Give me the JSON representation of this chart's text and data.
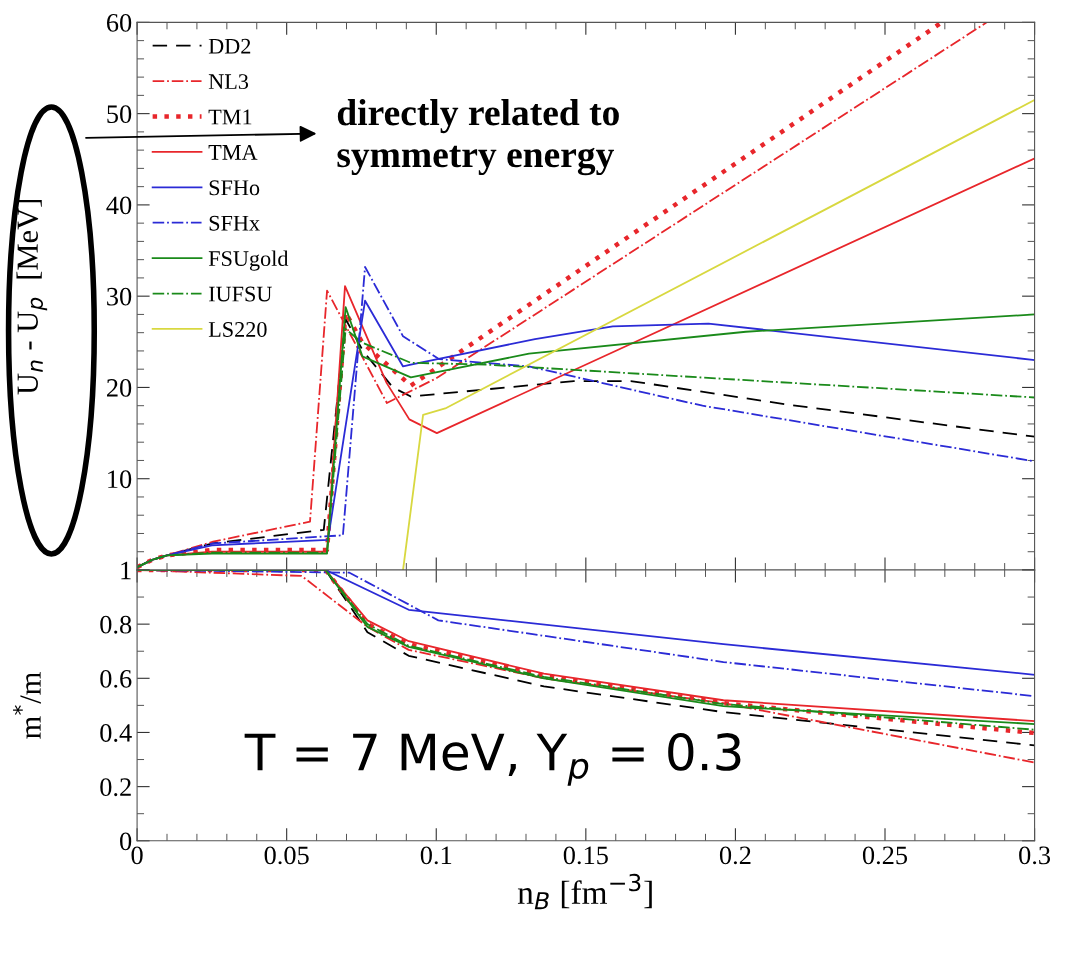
{
  "chart_data": [
    {
      "type": "line",
      "ylabel": "U$_{n}$ - U$_{p}$  [MeV]",
      "annotations": [
        "directly related to\nsymmetry energy"
      ],
      "xlim": [
        0,
        0.3
      ],
      "ylim": [
        0,
        60
      ],
      "xticks": [
        0,
        0.05,
        0.1,
        0.15,
        0.2,
        0.25,
        0.3
      ],
      "yticks": [
        {
          "value": 0,
          "label": null
        },
        10,
        20,
        30,
        40,
        50,
        60
      ],
      "tick_labels": "y",
      "grid": false,
      "legend": "top left",
      "series": [
        {
          "name": "DD2",
          "color": "#000000",
          "line_style": "dashed",
          "x": [
            0,
            0.005,
            0.01,
            0.025,
            0.0624,
            0.0697,
            0.0755,
            0.0855,
            0.0915,
            0.146,
            0.165,
            0.218,
            0.3
          ],
          "values": [
            0.3,
            1.1,
            1.6,
            2.9,
            4.4,
            27.5,
            24.0,
            20.0,
            19.0,
            20.7,
            20.7,
            18.1,
            14.6
          ]
        },
        {
          "name": "NL3",
          "color": "#e8262b",
          "line_style": "dashdot",
          "x": [
            0,
            0.005,
            0.01,
            0.0254,
            0.0578,
            0.0635,
            0.0835,
            0.1,
            0.284
          ],
          "values": [
            0.3,
            1.1,
            1.6,
            3.1,
            5.3,
            30.6,
            18.3,
            21.0,
            60
          ]
        },
        {
          "name": "TM1",
          "color": "#e8262b",
          "line_style": "dotted",
          "x": [
            0,
            0.005,
            0.01,
            0.025,
            0.0635,
            0.0697,
            0.0753,
            0.0915,
            0.269
          ],
          "values": [
            0.3,
            1.1,
            1.6,
            2.2,
            2.2,
            28.2,
            24.9,
            20.2,
            60
          ]
        },
        {
          "name": "TMA",
          "color": "#e8262b",
          "line_style": "solid",
          "x": [
            0,
            0.005,
            0.01,
            0.025,
            0.0635,
            0.0695,
            0.0834,
            0.091,
            0.1002,
            0.3
          ],
          "values": [
            0.3,
            1.1,
            1.6,
            2.0,
            2.0,
            31.1,
            20.5,
            16.5,
            15.0,
            45.1
          ]
        },
        {
          "name": "SFHo",
          "color": "#2b2bd6",
          "line_style": "solid",
          "x": [
            0,
            0.005,
            0.01,
            0.025,
            0.0638,
            0.0762,
            0.0889,
            0.0915,
            0.133,
            0.159,
            0.191,
            0.3
          ],
          "values": [
            0.3,
            1.1,
            1.6,
            2.7,
            3.3,
            29.5,
            22.3,
            22.5,
            25.3,
            26.7,
            27.0,
            23.0
          ]
        },
        {
          "name": "SFHx",
          "color": "#2b2bd6",
          "line_style": "dashdot",
          "x": [
            0,
            0.005,
            0.01,
            0.025,
            0.0688,
            0.0762,
            0.0889,
            0.101,
            0.131,
            0.189,
            0.3
          ],
          "values": [
            0.3,
            1.1,
            1.6,
            2.9,
            3.8,
            33.2,
            25.6,
            23.1,
            22.3,
            18.0,
            11.9
          ]
        },
        {
          "name": "FSUgold",
          "color": "#1a8a1a",
          "line_style": "solid",
          "x": [
            0,
            0.005,
            0.01,
            0.025,
            0.0635,
            0.0697,
            0.0753,
            0.0915,
            0.131,
            0.2035,
            0.3
          ],
          "values": [
            0.3,
            1.1,
            1.6,
            1.8,
            1.8,
            28.8,
            23.4,
            21.1,
            23.7,
            26.1,
            28.0
          ]
        },
        {
          "name": "IUFSU",
          "color": "#1a8a1a",
          "line_style": "dashdot",
          "x": [
            0,
            0.005,
            0.01,
            0.025,
            0.0635,
            0.0697,
            0.0753,
            0.0915,
            0.117,
            0.3
          ],
          "values": [
            0.3,
            1.1,
            1.6,
            1.9,
            1.9,
            26.4,
            24.9,
            22.7,
            22.5,
            18.9
          ]
        },
        {
          "name": "LS220",
          "color": "#d8d840",
          "line_style": "solid",
          "x": [
            0.0889,
            0.0956,
            0.103,
            0.3
          ],
          "values": [
            0,
            17.0,
            17.7,
            51.5
          ]
        }
      ]
    },
    {
      "type": "line",
      "xlabel": "n$_{B}$ [fm$^{−3}$]",
      "ylabel": "m$^{*}$/m",
      "annotations": [
        "T = 7 MeV, Y$_{p}$ = 0.3"
      ],
      "xlim": [
        0,
        0.3
      ],
      "ylim": [
        0,
        1
      ],
      "xticks": [
        0,
        0.05,
        0.1,
        0.15,
        0.2,
        0.25,
        0.3
      ],
      "yticks": [
        0,
        0.2,
        0.4,
        0.6,
        0.8,
        1
      ],
      "grid": false,
      "legend": false,
      "series": [
        {
          "color": "#000000",
          "line_style": "dashed",
          "x": [
            0,
            0.063,
            0.077,
            0.0908,
            0.136,
            0.196,
            0.3
          ],
          "values": [
            1,
            1,
            0.77,
            0.683,
            0.57,
            0.475,
            0.352
          ]
        },
        {
          "color": "#e8262b",
          "line_style": "dashdot",
          "x": [
            0,
            0.055,
            0.077,
            0.0908,
            0.136,
            0.196,
            0.3
          ],
          "values": [
            1,
            0.978,
            0.79,
            0.705,
            0.6,
            0.508,
            0.289
          ]
        },
        {
          "color": "#e8262b",
          "line_style": "dotted",
          "x": [
            0,
            0.063,
            0.077,
            0.0908,
            0.136,
            0.196,
            0.3
          ],
          "values": [
            1,
            1,
            0.8,
            0.726,
            0.61,
            0.508,
            0.398
          ]
        },
        {
          "color": "#e8262b",
          "line_style": "solid",
          "x": [
            0,
            0.063,
            0.077,
            0.0908,
            0.136,
            0.196,
            0.3
          ],
          "values": [
            1,
            1,
            0.814,
            0.737,
            0.617,
            0.519,
            0.442
          ]
        },
        {
          "color": "#2b2bd6",
          "line_style": "solid",
          "x": [
            0,
            0.063,
            0.0908,
            0.196,
            0.3
          ],
          "values": [
            1,
            1,
            0.853,
            0.726,
            0.613
          ]
        },
        {
          "color": "#2b2bd6",
          "line_style": "dashdot",
          "x": [
            0,
            0.071,
            0.1007,
            0.196,
            0.3
          ],
          "values": [
            1,
            0.99,
            0.814,
            0.66,
            0.534
          ]
        },
        {
          "color": "#1a8a1a",
          "line_style": "solid",
          "x": [
            0,
            0.063,
            0.077,
            0.0908,
            0.136,
            0.196,
            0.3
          ],
          "values": [
            1,
            1,
            0.79,
            0.716,
            0.6,
            0.497,
            0.431
          ]
        },
        {
          "color": "#1a8a1a",
          "line_style": "dashdot",
          "x": [
            0,
            0.063,
            0.077,
            0.0908,
            0.136,
            0.196,
            0.3
          ],
          "values": [
            1,
            1,
            0.8,
            0.72,
            0.605,
            0.505,
            0.41
          ]
        }
      ]
    }
  ]
}
